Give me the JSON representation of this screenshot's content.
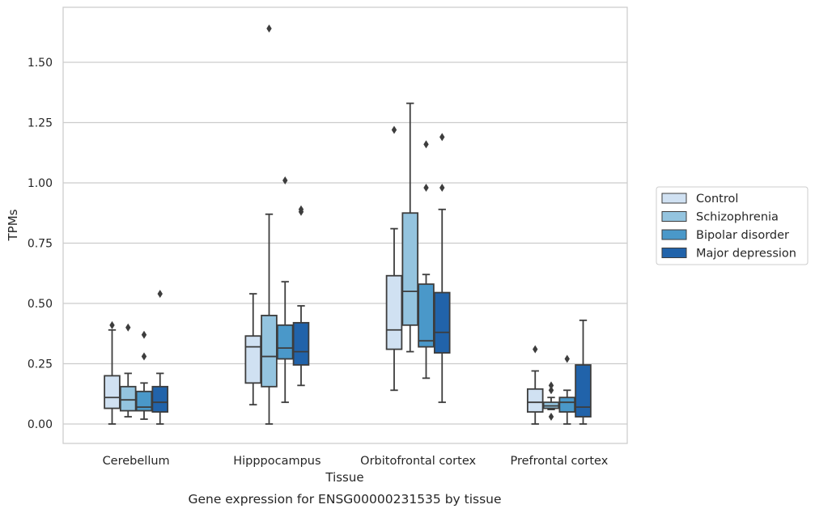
{
  "chart_data": {
    "type": "box",
    "title": "",
    "caption": "Gene expression for ENSG00000231535 by tissue",
    "xlabel": "Tissue",
    "ylabel": "TPMs",
    "ylim": [
      -0.08,
      1.73
    ],
    "yticks": [
      0.0,
      0.25,
      0.5,
      0.75,
      1.0,
      1.25,
      1.5
    ],
    "ytick_labels": [
      "0.00",
      "0.25",
      "0.50",
      "0.75",
      "1.00",
      "1.25",
      "1.50"
    ],
    "grid": "horizontal",
    "legend_position": "right",
    "categories": [
      "Cerebellum",
      "Hipppocampus",
      "Orbitofrontal cortex",
      "Prefrontal cortex"
    ],
    "series": [
      {
        "name": "Control",
        "color": "#d0e1f2",
        "boxes": [
          {
            "whislo": 0.0,
            "q1": 0.065,
            "med": 0.11,
            "q3": 0.2,
            "whishi": 0.39,
            "fliers": [
              0.41
            ]
          },
          {
            "whislo": 0.08,
            "q1": 0.17,
            "med": 0.32,
            "q3": 0.365,
            "whishi": 0.54,
            "fliers": []
          },
          {
            "whislo": 0.14,
            "q1": 0.31,
            "med": 0.39,
            "q3": 0.615,
            "whishi": 0.81,
            "fliers": [
              1.22
            ]
          },
          {
            "whislo": 0.0,
            "q1": 0.05,
            "med": 0.09,
            "q3": 0.145,
            "whishi": 0.22,
            "fliers": [
              0.31
            ]
          }
        ]
      },
      {
        "name": "Schizophrenia",
        "color": "#94c4df",
        "boxes": [
          {
            "whislo": 0.03,
            "q1": 0.055,
            "med": 0.1,
            "q3": 0.155,
            "whishi": 0.21,
            "fliers": [
              0.4
            ]
          },
          {
            "whislo": 0.0,
            "q1": 0.155,
            "med": 0.28,
            "q3": 0.45,
            "whishi": 0.87,
            "fliers": [
              1.64
            ]
          },
          {
            "whislo": 0.3,
            "q1": 0.41,
            "med": 0.55,
            "q3": 0.875,
            "whishi": 1.33,
            "fliers": []
          },
          {
            "whislo": 0.06,
            "q1": 0.065,
            "med": 0.075,
            "q3": 0.09,
            "whishi": 0.11,
            "fliers": [
              0.03,
              0.14,
              0.16
            ]
          }
        ]
      },
      {
        "name": "Bipolar disorder",
        "color": "#4a98c9",
        "boxes": [
          {
            "whislo": 0.02,
            "q1": 0.055,
            "med": 0.07,
            "q3": 0.135,
            "whishi": 0.17,
            "fliers": [
              0.28,
              0.37
            ]
          },
          {
            "whislo": 0.09,
            "q1": 0.27,
            "med": 0.315,
            "q3": 0.41,
            "whishi": 0.59,
            "fliers": [
              1.01
            ]
          },
          {
            "whislo": 0.19,
            "q1": 0.32,
            "med": 0.345,
            "q3": 0.58,
            "whishi": 0.62,
            "fliers": [
              0.98,
              1.16
            ]
          },
          {
            "whislo": 0.0,
            "q1": 0.05,
            "med": 0.09,
            "q3": 0.11,
            "whishi": 0.14,
            "fliers": [
              0.27
            ]
          }
        ]
      },
      {
        "name": "Major depression",
        "color": "#2163aa",
        "boxes": [
          {
            "whislo": 0.0,
            "q1": 0.05,
            "med": 0.09,
            "q3": 0.155,
            "whishi": 0.21,
            "fliers": [
              0.54
            ]
          },
          {
            "whislo": 0.16,
            "q1": 0.245,
            "med": 0.3,
            "q3": 0.42,
            "whishi": 0.49,
            "fliers": [
              0.88,
              0.89
            ]
          },
          {
            "whislo": 0.09,
            "q1": 0.295,
            "med": 0.38,
            "q3": 0.545,
            "whishi": 0.89,
            "fliers": [
              0.98,
              1.19
            ]
          },
          {
            "whislo": 0.0,
            "q1": 0.03,
            "med": 0.07,
            "q3": 0.245,
            "whishi": 0.43,
            "fliers": []
          }
        ]
      }
    ]
  }
}
